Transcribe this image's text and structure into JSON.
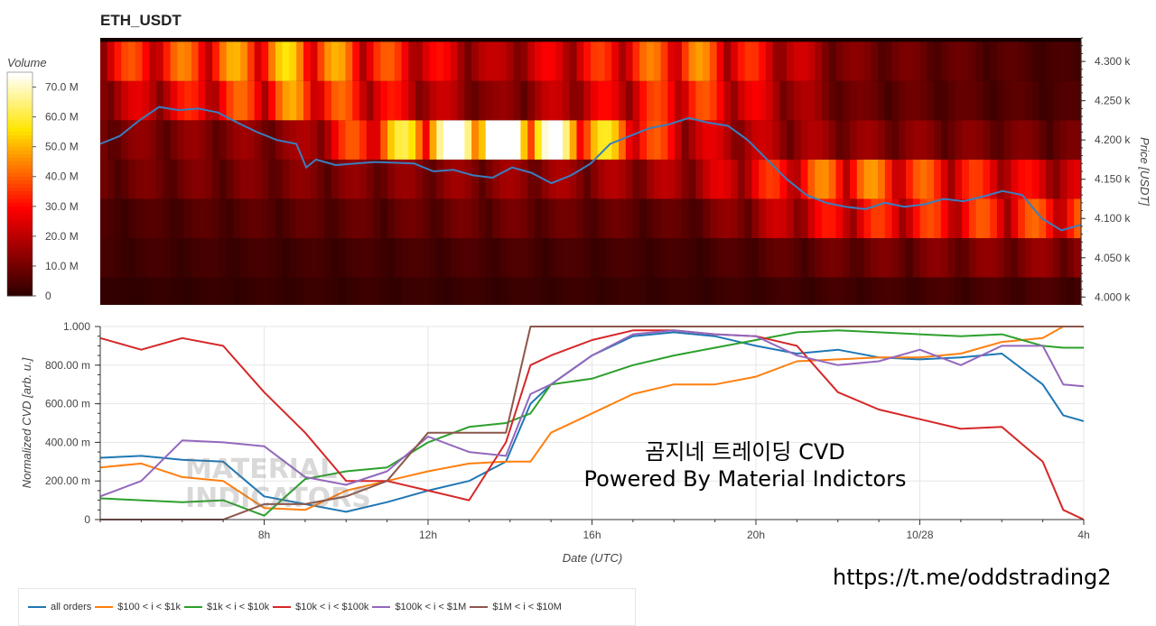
{
  "header": {
    "title": "ETH_USDT"
  },
  "colorbar": {
    "title": "Volume",
    "labels": [
      "70.0 M",
      "60.0 M",
      "50.0 M",
      "40.0 M",
      "30.0 M",
      "20.0 M",
      "10.0 M",
      "0"
    ]
  },
  "watermark": {
    "line1": "MATERIAL",
    "line2": "INDICATORS"
  },
  "annotation": {
    "line1": "곰지네 트레이딩 CVD",
    "line2": "Powered By Material Indictors"
  },
  "footer": {
    "link": "https://t.me/oddstrading2"
  },
  "colors": {
    "price_line": "#3a7ebf",
    "all_orders": "#1f77b4",
    "s100": "#ff7f0e",
    "s1k": "#2ca02c",
    "s10k": "#d62728",
    "s100k": "#9467bd",
    "s1M": "#8c564b"
  },
  "chart_data": [
    {
      "type": "heatmap",
      "title": "ETH_USDT",
      "ylabel": "Price [USDT]",
      "ylim": [
        3990,
        4330
      ],
      "y_ticks": [
        {
          "value": 4000,
          "label": "4.000 k"
        },
        {
          "value": 4050,
          "label": "4.050 k"
        },
        {
          "value": 4100,
          "label": "4.100 k"
        },
        {
          "value": 4150,
          "label": "4.150 k"
        },
        {
          "value": 4200,
          "label": "4.200 k"
        },
        {
          "value": 4250,
          "label": "4.250 k"
        },
        {
          "value": 4300,
          "label": "4.300 k"
        }
      ],
      "price_bins": [
        4300,
        4250,
        4200,
        4150,
        4100,
        4050,
        4000
      ],
      "volume_range": [
        0,
        75
      ],
      "volume_unit": "M",
      "x_hours": [
        3,
        8,
        13,
        18,
        22,
        28
      ],
      "volume_levels": [
        [
          25,
          40,
          15,
          35,
          10,
          3
        ],
        [
          15,
          35,
          10,
          30,
          8,
          4
        ],
        [
          10,
          12,
          70,
          20,
          12,
          8
        ],
        [
          8,
          10,
          12,
          15,
          35,
          18
        ],
        [
          4,
          6,
          8,
          6,
          25,
          30
        ],
        [
          3,
          3,
          4,
          3,
          8,
          12
        ],
        [
          1,
          2,
          2,
          2,
          3,
          4
        ]
      ],
      "price_series": {
        "name": "Price",
        "x_hours": [
          3,
          3.5,
          4,
          4.5,
          5,
          5.5,
          6,
          6.5,
          7,
          7.5,
          8,
          8.25,
          8.5,
          9,
          9.5,
          10,
          10.5,
          11,
          11.5,
          12,
          12.5,
          13,
          13.5,
          14,
          14.5,
          15,
          15.5,
          16,
          16.5,
          17,
          17.5,
          18,
          18.5,
          19,
          19.5,
          20,
          20.5,
          21,
          21.5,
          22,
          22.5,
          23,
          23.5,
          24,
          24.5,
          25,
          25.5,
          26,
          26.5,
          27,
          27.5,
          28
        ],
        "values": [
          4195,
          4205,
          4225,
          4242,
          4238,
          4240,
          4235,
          4222,
          4210,
          4200,
          4195,
          4165,
          4175,
          4168,
          4170,
          4172,
          4171,
          4170,
          4160,
          4162,
          4155,
          4152,
          4165,
          4158,
          4145,
          4155,
          4170,
          4195,
          4205,
          4215,
          4220,
          4228,
          4222,
          4218,
          4200,
          4175,
          4150,
          4130,
          4120,
          4115,
          4112,
          4120,
          4115,
          4118,
          4125,
          4122,
          4128,
          4135,
          4130,
          4100,
          4085,
          4092
        ]
      }
    },
    {
      "type": "line",
      "xlabel": "Date (UTC)",
      "ylabel": "Normalized CVD [arb. u.]",
      "xlim": [
        4,
        28
      ],
      "ylim": [
        0,
        1000
      ],
      "x_ticks": [
        {
          "value": 8,
          "label": "8h"
        },
        {
          "value": 12,
          "label": "12h"
        },
        {
          "value": 16,
          "label": "16h"
        },
        {
          "value": 20,
          "label": "20h"
        },
        {
          "value": 24,
          "label": "10/28"
        },
        {
          "value": 28,
          "label": "4h"
        }
      ],
      "y_ticks": [
        {
          "value": 0,
          "label": "0"
        },
        {
          "value": 200,
          "label": "200.00 m"
        },
        {
          "value": 400,
          "label": "400.00 m"
        },
        {
          "value": 600,
          "label": "600.00 m"
        },
        {
          "value": 800,
          "label": "800.00 m"
        },
        {
          "value": 1000,
          "label": "1.000"
        }
      ],
      "x": [
        4,
        5,
        6,
        7,
        8,
        9,
        10,
        11,
        12,
        13,
        13.9,
        14.5,
        15,
        16,
        17,
        18,
        19,
        20,
        21,
        22,
        23,
        24,
        25,
        26,
        27,
        27.5,
        28
      ],
      "series": [
        {
          "name": "all orders",
          "color_key": "all_orders",
          "values": [
            320,
            330,
            310,
            300,
            120,
            80,
            40,
            90,
            150,
            200,
            300,
            600,
            700,
            850,
            950,
            970,
            950,
            900,
            860,
            880,
            840,
            830,
            840,
            860,
            700,
            540,
            510
          ]
        },
        {
          "name": "$100 < i < $1k",
          "color_key": "s100",
          "values": [
            270,
            290,
            220,
            200,
            60,
            50,
            150,
            200,
            250,
            290,
            300,
            300,
            450,
            550,
            650,
            700,
            700,
            740,
            820,
            830,
            840,
            840,
            860,
            920,
            940,
            1000,
            1000
          ]
        },
        {
          "name": "$1k < i < $10k",
          "color_key": "s1k",
          "values": [
            110,
            100,
            90,
            100,
            20,
            210,
            250,
            270,
            400,
            480,
            500,
            550,
            700,
            730,
            800,
            850,
            890,
            930,
            970,
            980,
            970,
            960,
            950,
            960,
            900,
            890,
            890
          ]
        },
        {
          "name": "$10k < i < $100k",
          "color_key": "s10k",
          "values": [
            940,
            880,
            940,
            900,
            660,
            450,
            200,
            200,
            150,
            100,
            400,
            800,
            850,
            930,
            980,
            980,
            960,
            950,
            900,
            660,
            570,
            520,
            470,
            480,
            300,
            50,
            0
          ]
        },
        {
          "name": "$100k < i < $1M",
          "color_key": "s100k",
          "values": [
            120,
            200,
            410,
            400,
            380,
            220,
            180,
            250,
            430,
            350,
            330,
            650,
            700,
            850,
            960,
            980,
            960,
            950,
            850,
            800,
            820,
            880,
            800,
            900,
            900,
            700,
            690
          ]
        },
        {
          "name": "$1M < i < $10M",
          "color_key": "s1M",
          "values": [
            0,
            0,
            0,
            0,
            80,
            80,
            120,
            200,
            450,
            450,
            450,
            1000,
            1000,
            1000,
            1000,
            1000,
            1000,
            1000,
            1000,
            1000,
            1000,
            1000,
            1000,
            1000,
            1000,
            1000,
            1000
          ]
        }
      ],
      "legend_position": "bottom-left",
      "grid": true
    }
  ]
}
